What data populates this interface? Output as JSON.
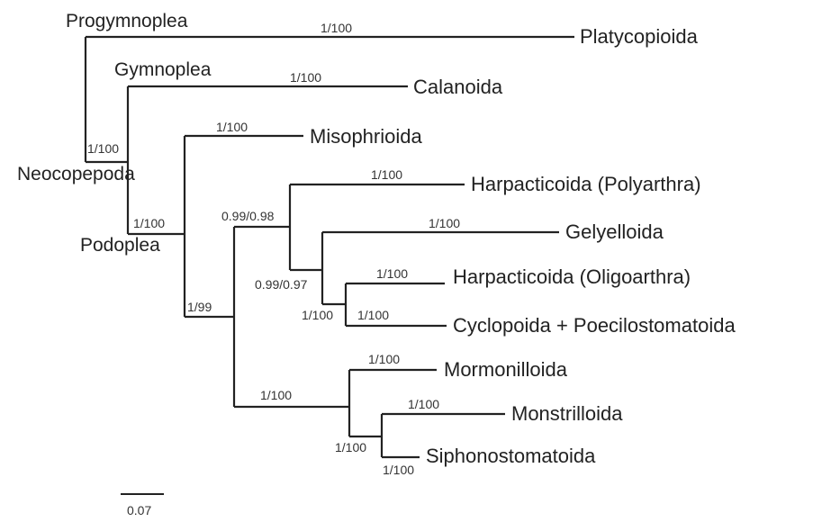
{
  "taxa": {
    "platycopioida": "Platycopioida",
    "calanoida": "Calanoida",
    "misophrioida": "Misophrioida",
    "harpacticoida_polyarthra": "Harpacticoida (Polyarthra)",
    "gelyelloida": "Gelyelloida",
    "harpacticoida_oligoarthra": "Harpacticoida (Oligoarthra)",
    "cyclopoida_poecilostomatoida": "Cyclopoida + Poecilostomatoida",
    "mormonilloida": "Mormonilloida",
    "monstrilloida": "Monstrilloida",
    "siphonostomatoida": "Siphonostomatoida"
  },
  "clades": {
    "progymnoplea": "Progymnoplea",
    "gymnoplea": "Gymnoplea",
    "neocopepoda": "Neocopepoda",
    "podoplea": "Podoplea"
  },
  "support": {
    "platycopioida": "1/100",
    "calanoida": "1/100",
    "neocopepoda": "1/100",
    "misophrioida": "1/100",
    "podoplea": "1/100",
    "harpacticoida_polyarthra": "1/100",
    "node_099_098": "0.99/0.98",
    "gelyelloida": "1/100",
    "node_099_097": "0.99/0.97",
    "harpacticoida_oligoarthra": "1/100",
    "harp_cyclo_node": "1/100",
    "cyclopoida_poecilostomatoida": "1/100",
    "node_1_99": "1/99",
    "mormonilloida": "1/100",
    "mormo_clade": "1/100",
    "monstrilloida": "1/100",
    "monstri_node": "1/100",
    "siphonostomatoida": "1/100"
  },
  "scale": {
    "label": "0.07",
    "value": 0.07
  }
}
